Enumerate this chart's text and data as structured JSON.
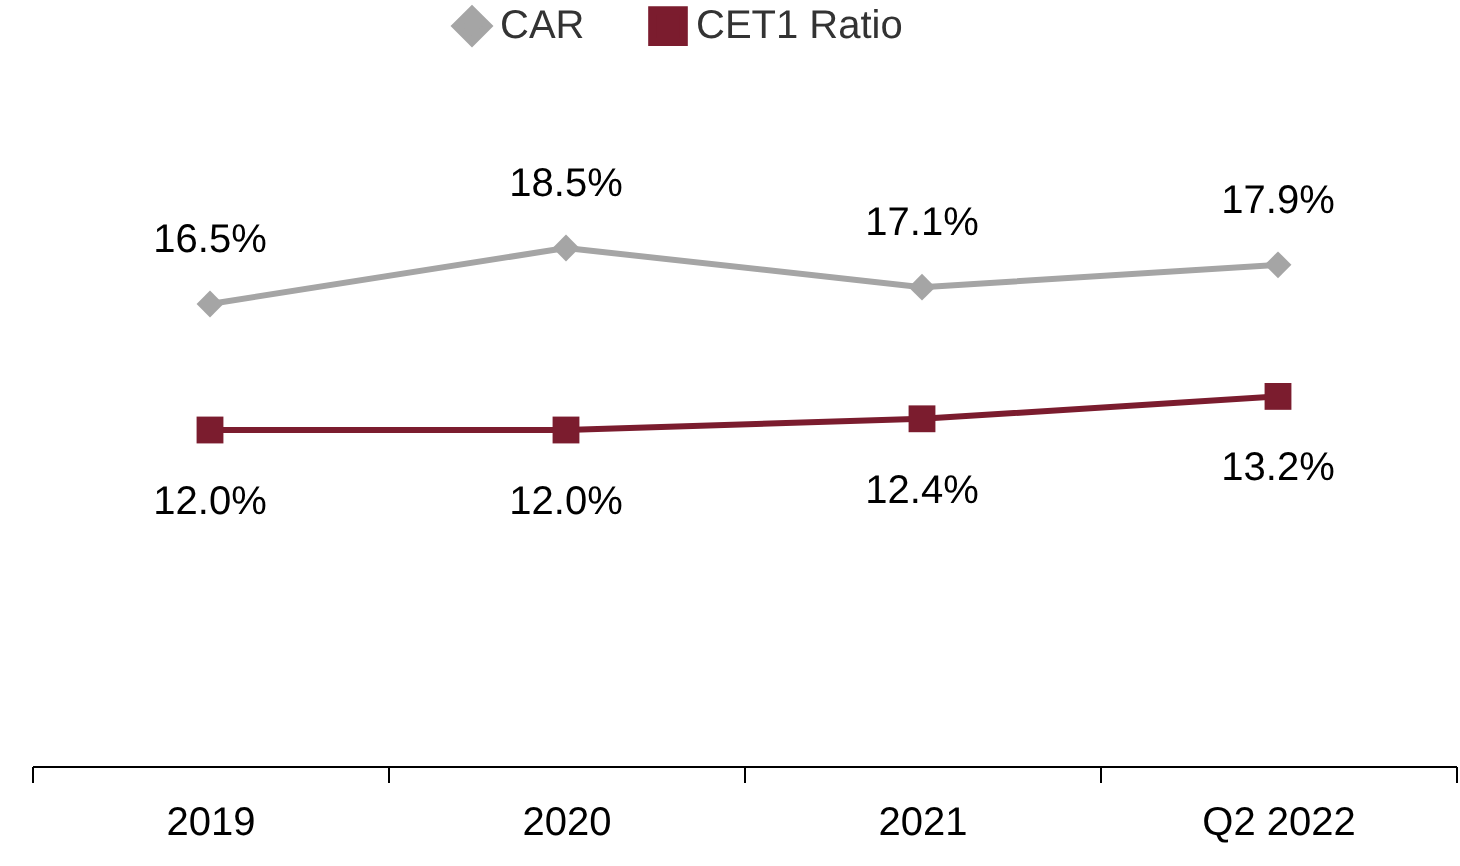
{
  "chart_data": {
    "type": "line",
    "categories": [
      "2019",
      "2020",
      "2021",
      "Q2 2022"
    ],
    "series": [
      {
        "name": "CAR",
        "color": "#a5a5a5",
        "marker": "diamond",
        "values": [
          16.5,
          18.5,
          17.1,
          17.9
        ],
        "value_labels": [
          "16.5%",
          "18.5%",
          "17.1%",
          "17.9%"
        ]
      },
      {
        "name": "CET1 Ratio",
        "color": "#7b1c2e",
        "marker": "square",
        "values": [
          12.0,
          12.0,
          12.4,
          13.2
        ],
        "value_labels": [
          "12.0%",
          "12.0%",
          "12.4%",
          "13.2%"
        ]
      }
    ],
    "tick_labels": "x",
    "grid": false,
    "legend": "top"
  }
}
